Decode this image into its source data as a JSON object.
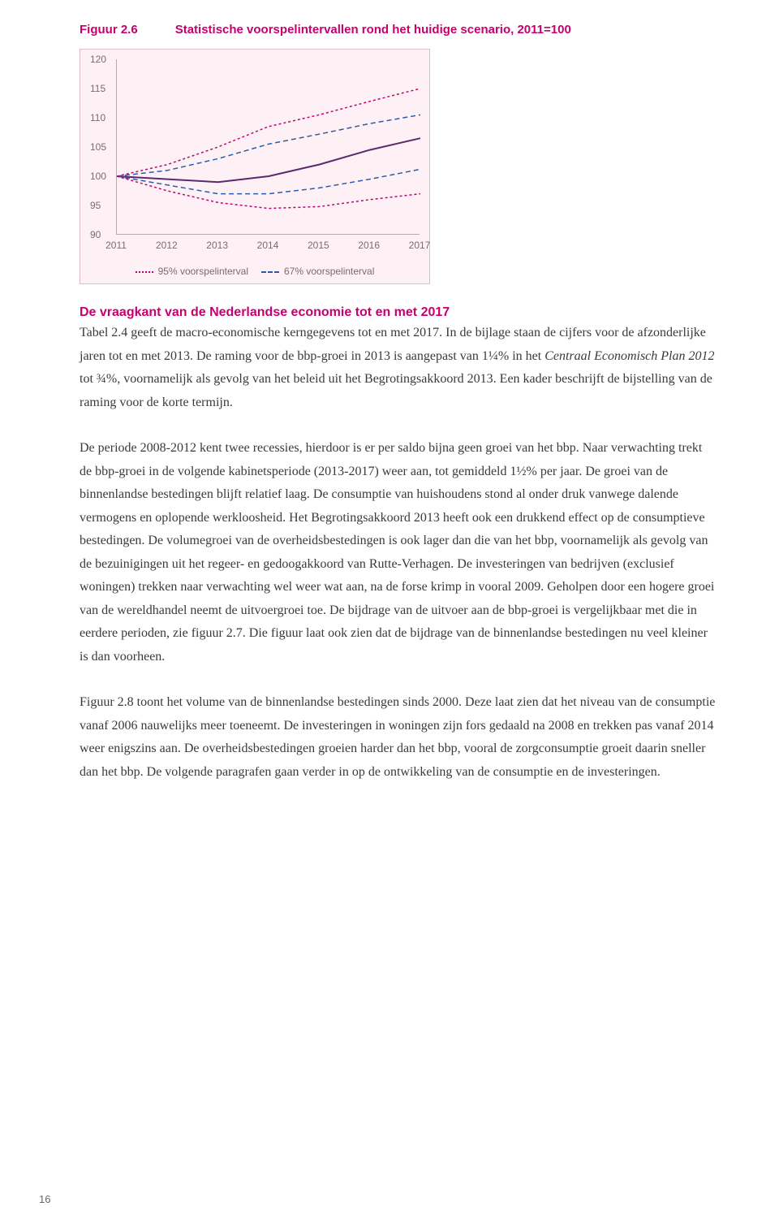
{
  "figure": {
    "label": "Figuur 2.6",
    "title": "Statistische voorspelintervallen rond het huidige scenario, 2011=100",
    "chart": {
      "type": "line",
      "xlim": [
        2011,
        2017
      ],
      "ylim": [
        90,
        120
      ],
      "ytick_step": 5,
      "yticks": [
        90,
        95,
        100,
        105,
        110,
        115,
        120
      ],
      "xticks": [
        2011,
        2012,
        2013,
        2014,
        2015,
        2016,
        2017
      ],
      "background_color": "#fdf1f6",
      "border_color": "#e6b8d0",
      "axis_color": "#b8a8b0",
      "label_color": "#7a6a72",
      "label_fontsize": 12,
      "series": [
        {
          "name": "upper95",
          "values": [
            100,
            102,
            105,
            108.5,
            110.5,
            112.8,
            115
          ],
          "color": "#c6006f",
          "dash": "3,3",
          "width": 1.5
        },
        {
          "name": "upper67",
          "values": [
            100,
            101,
            103,
            105.5,
            107.2,
            109,
            110.5
          ],
          "color": "#2a5caa",
          "dash": "6,4",
          "width": 1.5
        },
        {
          "name": "central",
          "values": [
            100,
            99.5,
            99,
            100,
            102,
            104.5,
            106.5
          ],
          "color": "#5a2a6e",
          "dash": "none",
          "width": 2
        },
        {
          "name": "lower67",
          "values": [
            100,
            98.5,
            97,
            97,
            98,
            99.5,
            101.2
          ],
          "color": "#2a5caa",
          "dash": "6,4",
          "width": 1.5
        },
        {
          "name": "lower95",
          "values": [
            100,
            97.5,
            95.5,
            94.5,
            94.8,
            96,
            97
          ],
          "color": "#c6006f",
          "dash": "3,3",
          "width": 1.5
        }
      ],
      "legend": [
        {
          "label": "95% voorspelinterval",
          "color": "#c6006f",
          "dash": "dotted"
        },
        {
          "label": "67% voorspelinterval",
          "color": "#2a5caa",
          "dash": "dashed"
        }
      ]
    }
  },
  "section_title": "De vraagkant van de Nederlandse economie tot en met 2017",
  "paragraphs": {
    "p1a": "Tabel 2.4 geeft de macro-economische kerngegevens tot en met 2017. In de bijlage staan de cijfers voor de afzonderlijke jaren tot en met 2013. De raming voor de bbp-groei in 2013 is aangepast van 1¼% in het ",
    "p1i": "Centraal Economisch Plan 2012",
    "p1b": " tot ¾%, voornamelijk als gevolg van het beleid uit het Begrotingsakkoord 2013. Een kader beschrijft de bijstelling van de raming voor de korte termijn.",
    "p2": "De periode 2008-2012 kent twee recessies, hierdoor is er per saldo bijna geen groei van het bbp. Naar verwachting trekt de bbp-groei in de volgende kabinetsperiode (2013-2017) weer aan, tot gemiddeld 1½% per jaar. De groei van de binnenlandse bestedingen blijft relatief laag. De consumptie van huishoudens stond al onder druk vanwege dalende vermogens en oplopende werkloosheid. Het Begrotingsakkoord 2013 heeft ook een drukkend effect op de consumptieve bestedingen. De volumegroei van de overheidsbestedingen is ook lager dan die van het bbp, voornamelijk als gevolg van de bezuinigingen uit het regeer- en gedoogakkoord van Rutte-Verhagen. De investeringen van bedrijven (exclusief woningen) trekken naar verwachting wel weer wat aan, na de forse krimp in vooral 2009. Geholpen door een hogere groei van de wereldhandel neemt de uitvoergroei toe. De bijdrage van de uitvoer aan de bbp-groei is vergelijkbaar met die in eerdere perioden, zie figuur 2.7. Die figuur laat ook zien dat de bijdrage van de binnenlandse bestedingen nu veel kleiner is dan voorheen.",
    "p3": "Figuur 2.8 toont het volume van de binnenlandse bestedingen sinds 2000. Deze laat zien dat het niveau van de consumptie vanaf 2006 nauwelijks meer toeneemt. De investeringen in woningen zijn fors gedaald na 2008 en trekken pas vanaf 2014 weer enigszins aan. De overheidsbestedingen groeien harder dan het bbp, vooral de zorgconsumptie groeit daarin sneller dan het bbp. De volgende paragrafen gaan verder in op de ontwikkeling van de consumptie en de investeringen."
  },
  "page_number": "16"
}
